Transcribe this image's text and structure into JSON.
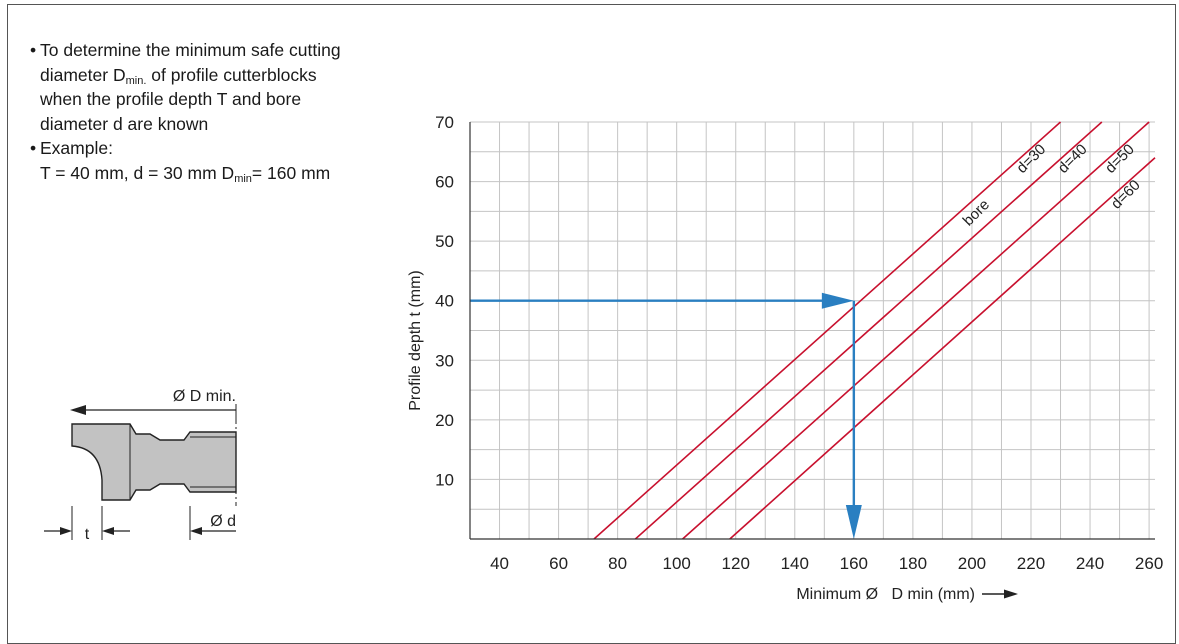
{
  "description": {
    "bullets": [
      {
        "id": "purpose",
        "lines": [
          [
            "To determine the minimum safe cutting"
          ],
          [
            "diameter D",
            {
              "sub": "min."
            },
            " of profile cutterblocks"
          ],
          [
            "when the profile depth T and bore"
          ],
          [
            "diameter d are known"
          ]
        ]
      },
      {
        "id": "example",
        "lines": [
          [
            "Example:"
          ],
          [
            "T = 40 mm, d = 30 mm D",
            {
              "sub": "min"
            },
            "= 160 mm"
          ]
        ]
      }
    ]
  },
  "diagram": {
    "outer_label": "Ø D min.",
    "depth_label": "t",
    "bore_label": "Ø d"
  },
  "chart_data": {
    "type": "line",
    "xlabel": "Minimum Ø   D min (mm)",
    "ylabel": "Profile depth t (mm)",
    "xlim": [
      30,
      262
    ],
    "ylim": [
      0,
      70
    ],
    "xticks": [
      40,
      60,
      80,
      100,
      120,
      140,
      160,
      180,
      200,
      220,
      240,
      260
    ],
    "yticks": [
      10,
      20,
      30,
      40,
      50,
      60,
      70
    ],
    "grid": true,
    "grid_minor_x": 10,
    "grid_minor_y": 5,
    "bore_label": "bore",
    "series": [
      {
        "name": "d=30",
        "x": [
          72,
          230
        ],
        "y": [
          0,
          70
        ]
      },
      {
        "name": "d=40",
        "x": [
          86,
          244
        ],
        "y": [
          0,
          70
        ]
      },
      {
        "name": "d=50",
        "x": [
          102,
          260
        ],
        "y": [
          0,
          70
        ]
      },
      {
        "name": "d=60",
        "x": [
          118,
          262
        ],
        "y": [
          0,
          64
        ]
      }
    ],
    "example": {
      "t": 40,
      "D_min": 160,
      "d": 30
    },
    "colors": {
      "series": "#c8102e",
      "arrow": "#2a7fc1",
      "grid": "#c4c4c4"
    }
  }
}
